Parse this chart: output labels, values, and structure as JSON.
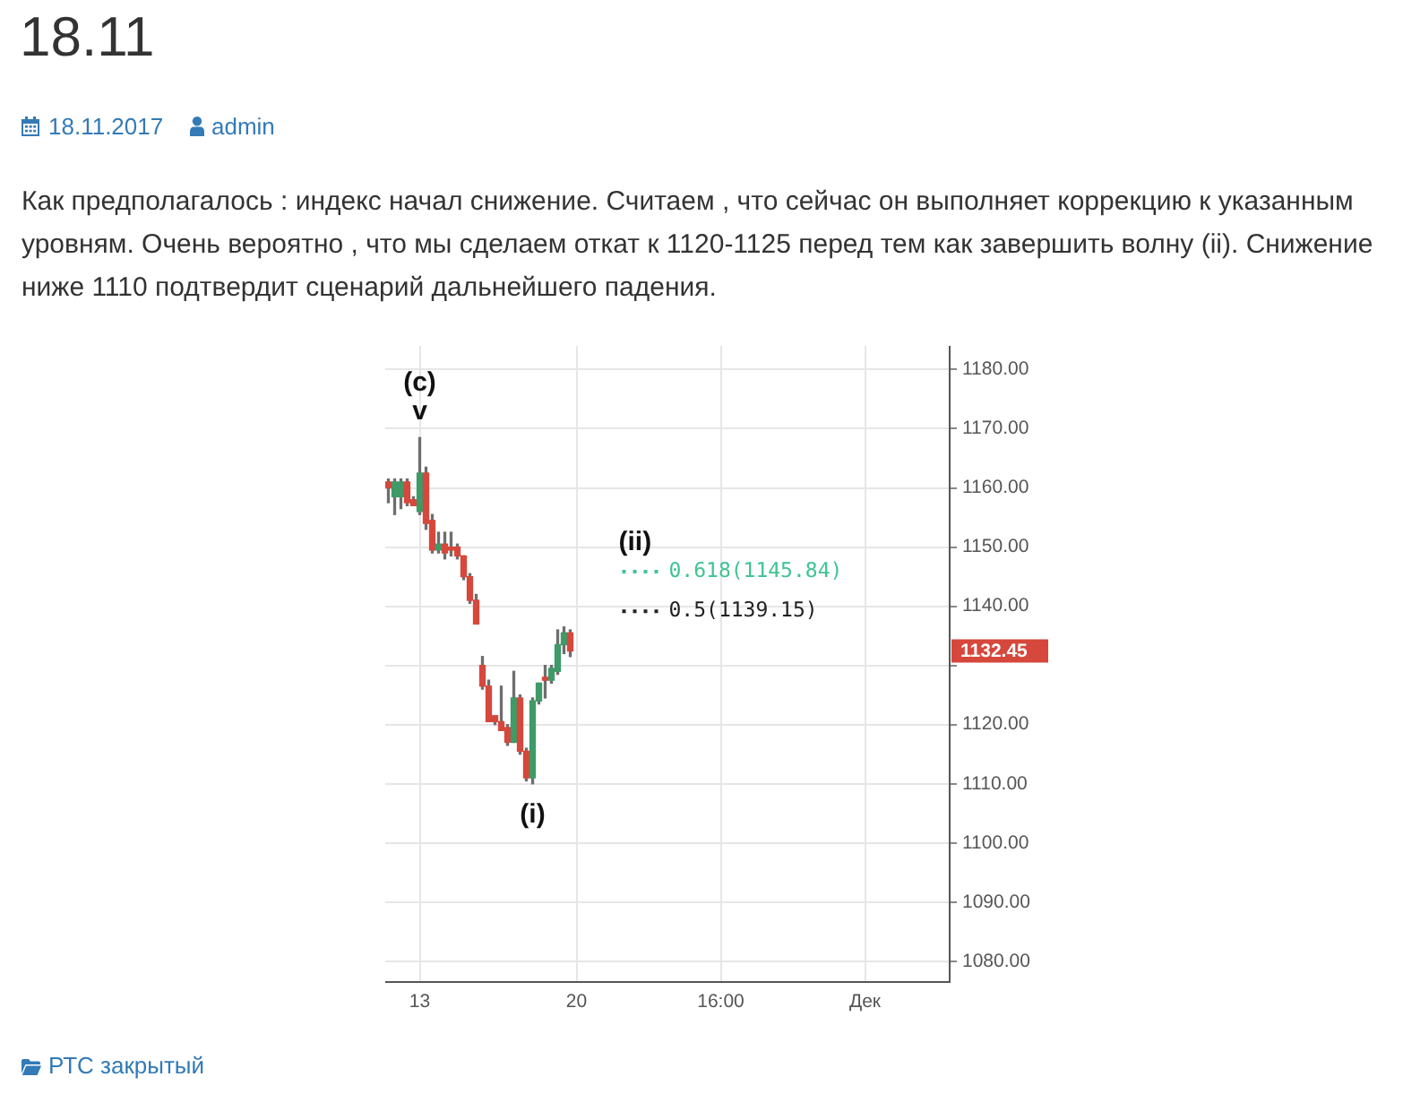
{
  "chart_data": {
    "type": "candlestick",
    "title": "18.11",
    "subtitle": "Как предполагалось : индекс начал снижение. Считаем , что сейчас он выполняет коррекцию к указанным уровням. Очень вероятно , что мы сделаем откат к 1120-1125 перед тем как завершить волну (ii). Снижение ниже 1110 подтвердит сценарий дальнейшего падения.",
    "categories": [
      null,
      null,
      null,
      null,
      null,
      "13",
      null,
      null,
      null,
      null,
      null,
      null,
      null,
      null,
      null,
      null,
      null,
      null,
      null,
      null,
      null,
      null,
      null,
      null,
      null,
      null,
      null,
      null,
      null,
      null,
      "20",
      null,
      null,
      null,
      null,
      null,
      null,
      null,
      null,
      null,
      null,
      null,
      null,
      null,
      null,
      null,
      null,
      null,
      null,
      null,
      null,
      null,
      null,
      "16:00",
      null,
      null,
      null,
      null,
      null,
      null,
      null,
      null,
      null,
      null,
      null,
      null,
      null,
      null,
      null,
      null,
      null,
      null,
      null,
      null,
      null,
      null,
      "Дек",
      null,
      null,
      null,
      null,
      null,
      null,
      null,
      null,
      null,
      null,
      null,
      null,
      null
    ],
    "ohlc": [
      [
        1161,
        1161.5,
        1157.5,
        1160
      ],
      [
        1158.5,
        1161.5,
        1155.5,
        1161
      ],
      [
        1158.5,
        1161.5,
        1156.5,
        1161
      ],
      [
        1161,
        1161.5,
        1157,
        1157.5
      ],
      [
        1158,
        1158.5,
        1157,
        1157
      ],
      [
        1156,
        1168.5,
        1155.5,
        1162.5
      ],
      [
        1162.5,
        1163.5,
        1153,
        1154
      ],
      [
        1154.5,
        1155.5,
        1149,
        1149.5
      ],
      [
        1149.5,
        1152.5,
        1149,
        1150.5
      ],
      [
        1150.5,
        1152.5,
        1148,
        1149
      ],
      [
        1150,
        1152.5,
        1148.5,
        1149.5
      ],
      [
        1150,
        1150.5,
        1148,
        1148.5
      ],
      [
        1148.5,
        1148.5,
        1144.5,
        1145
      ],
      [
        1145,
        1145.5,
        1140.5,
        1141
      ],
      [
        1141,
        1142,
        1137,
        1137
      ],
      [
        1130,
        1131.5,
        1126,
        1126.5
      ],
      [
        1126.5,
        1127.5,
        1120.5,
        1120.5
      ],
      [
        1121.5,
        1121.5,
        1120,
        1120.5
      ],
      [
        1120.5,
        1126.5,
        1119,
        1119
      ],
      [
        1119.5,
        1120,
        1116.5,
        1117
      ],
      [
        1117,
        1129,
        1117,
        1124.5
      ],
      [
        1124.5,
        1125,
        1115,
        1115.5
      ],
      [
        1115.5,
        1116,
        1110.5,
        1111
      ],
      [
        1111,
        1124.5,
        1110,
        1124
      ],
      [
        1124,
        1127,
        1123.5,
        1127
      ],
      [
        1128,
        1130,
        1124.5,
        1127.5
      ],
      [
        1127.5,
        1130,
        1127,
        1129.5
      ],
      [
        1129,
        1136,
        1128.5,
        1133.5
      ],
      [
        1133.5,
        1136.5,
        1132,
        1135.5
      ],
      [
        1135.5,
        1136,
        1131.5,
        1132.45
      ],
      null,
      null,
      null,
      null,
      null,
      null,
      null,
      null,
      null,
      null,
      null,
      null,
      null,
      null,
      null,
      null,
      null,
      null,
      null,
      null,
      null,
      null,
      null,
      null,
      null,
      null,
      null,
      null,
      null,
      null,
      null,
      null,
      null,
      null,
      null,
      null,
      null,
      null,
      null,
      null,
      null,
      null,
      null,
      null,
      null,
      null,
      null,
      null,
      null,
      null,
      null,
      null,
      null,
      null,
      null,
      null,
      null,
      null,
      null,
      null
    ],
    "colors": [
      "#d6473c",
      "#3f9a68",
      "#3f9a68",
      "#d6473c",
      "#d6473c",
      "#3f9a68",
      "#d6473c",
      "#d6473c",
      "#3f9a68",
      "#d6473c",
      "#d6473c",
      "#d6473c",
      "#d6473c",
      "#d6473c",
      "#d6473c",
      "#d6473c",
      "#d6473c",
      "#d6473c",
      "#d6473c",
      "#d6473c",
      "#3f9a68",
      "#d6473c",
      "#d6473c",
      "#3f9a68",
      "#3f9a68",
      "#d6473c",
      "#3f9a68",
      "#3f9a68",
      "#3f9a68",
      "#d6473c",
      null,
      null,
      null,
      null,
      null,
      null,
      null,
      null,
      null,
      null,
      null,
      null,
      null,
      null,
      null,
      null,
      null,
      null,
      null,
      null,
      null,
      null,
      null,
      null,
      null,
      null,
      null,
      null,
      null,
      null,
      null,
      null,
      null,
      null,
      null,
      null,
      null,
      null,
      null,
      null,
      null,
      null,
      null,
      null,
      null,
      null,
      null,
      null,
      null,
      null,
      null,
      null,
      null,
      null,
      null,
      null,
      null,
      null,
      null,
      null
    ],
    "ylim": [
      1076.5,
      1184
    ],
    "yticks": [
      {
        "value": 1080,
        "label": "1080.00"
      },
      {
        "value": 1090,
        "label": "1090.00"
      },
      {
        "value": 1100,
        "label": "1100.00"
      },
      {
        "value": 1110,
        "label": "1110.00"
      },
      {
        "value": 1120,
        "label": "1120.00"
      },
      {
        "value": 1130,
        "label": null
      },
      {
        "value": 1140,
        "label": "1140.00"
      },
      {
        "value": 1150,
        "label": "1150.00"
      },
      {
        "value": 1160,
        "label": "1160.00"
      },
      {
        "value": 1170,
        "label": "1170.00"
      },
      {
        "value": 1180,
        "label": "1180.00"
      }
    ],
    "grid": true,
    "ref_lines": [
      {
        "axis": "y",
        "value": 1145.84,
        "label": "0.618(1145.84)",
        "color": "#3fc493",
        "line_style": "dotted"
      },
      {
        "axis": "y",
        "value": 1139.15,
        "label": "0.5(1139.15)",
        "color": "#222222",
        "line_style": "dotted"
      }
    ],
    "annotations": [
      "18.11.2017",
      "admin",
      "РТС закрытый",
      "(ii)",
      "1132.45",
      {
        "text": "(c)",
        "x": "13",
        "y": 1168.5
      },
      {
        "text": "v",
        "x": "13",
        "y": 1168.5
      },
      {
        "text": "(i)",
        "y": 1110
      }
    ]
  }
}
